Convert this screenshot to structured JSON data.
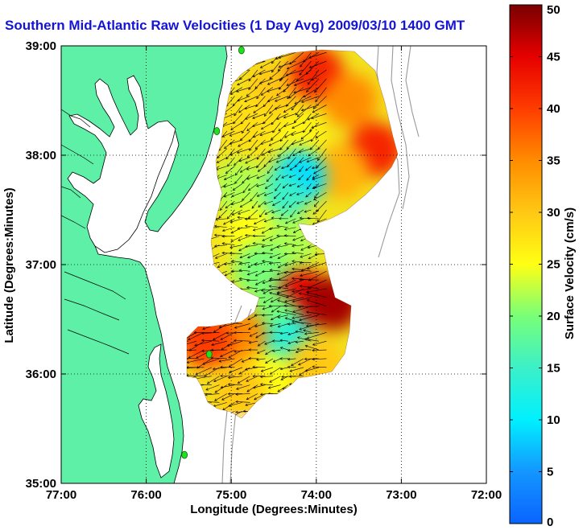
{
  "title": "Southern Mid-Atlantic Raw Velocities (1 Day Avg) 2009/03/10 1400 GMT",
  "x_axis": {
    "label": "Longitude (Degrees:Minutes)",
    "ticks": [
      {
        "value": -77,
        "label": "77:00"
      },
      {
        "value": -76,
        "label": "76:00"
      },
      {
        "value": -75,
        "label": "75:00"
      },
      {
        "value": -74,
        "label": "74:00"
      },
      {
        "value": -73,
        "label": "73:00"
      },
      {
        "value": -72,
        "label": "72:00"
      }
    ],
    "range": [
      -77,
      -72
    ]
  },
  "y_axis": {
    "label": "Latitude (Degrees:Minutes)",
    "ticks": [
      {
        "value": 39,
        "label": "39:00"
      },
      {
        "value": 38,
        "label": "38:00"
      },
      {
        "value": 37,
        "label": "37:00"
      },
      {
        "value": 36,
        "label": "36:00"
      },
      {
        "value": 35,
        "label": "35:00"
      }
    ],
    "range": [
      35,
      39
    ]
  },
  "colorbar": {
    "label": "Surface Velocity (cm/s)",
    "min": 0,
    "max": 50,
    "ticks": [
      {
        "value": 0,
        "label": "0"
      },
      {
        "value": 5,
        "label": "5"
      },
      {
        "value": 10,
        "label": "10"
      },
      {
        "value": 15,
        "label": "15"
      },
      {
        "value": 20,
        "label": "20"
      },
      {
        "value": 25,
        "label": "25"
      },
      {
        "value": 30,
        "label": "30"
      },
      {
        "value": 35,
        "label": "35"
      },
      {
        "value": 40,
        "label": "40"
      },
      {
        "value": 45,
        "label": "45"
      },
      {
        "value": 50,
        "label": "50"
      }
    ]
  },
  "colors": {
    "land": "#5ff0a8",
    "title": "#1414d8",
    "station": "#20e020",
    "grid": "#000000",
    "bathymetry": "#999999"
  },
  "grid": true,
  "stations": [
    {
      "lon": -74.88,
      "lat": 38.96
    },
    {
      "lon": -75.17,
      "lat": 38.22
    },
    {
      "lon": -75.26,
      "lat": 36.18
    },
    {
      "lon": -75.55,
      "lat": 35.26
    }
  ],
  "velocity_field": {
    "units": "cm/s",
    "regions": [
      {
        "lon": -74.5,
        "lat": 38.6,
        "speed": 30
      },
      {
        "lon": -74.0,
        "lat": 38.75,
        "speed": 42
      },
      {
        "lon": -73.6,
        "lat": 38.5,
        "speed": 35
      },
      {
        "lon": -73.3,
        "lat": 38.05,
        "speed": 42
      },
      {
        "lon": -73.7,
        "lat": 37.85,
        "speed": 32
      },
      {
        "lon": -74.8,
        "lat": 38.3,
        "speed": 28
      },
      {
        "lon": -74.2,
        "lat": 38.15,
        "speed": 26
      },
      {
        "lon": -74.2,
        "lat": 37.8,
        "speed": 9
      },
      {
        "lon": -74.45,
        "lat": 37.6,
        "speed": 15
      },
      {
        "lon": -74.9,
        "lat": 37.7,
        "speed": 22
      },
      {
        "lon": -74.75,
        "lat": 37.3,
        "speed": 25
      },
      {
        "lon": -74.3,
        "lat": 37.2,
        "speed": 22
      },
      {
        "lon": -74.65,
        "lat": 36.95,
        "speed": 20
      },
      {
        "lon": -74.15,
        "lat": 36.7,
        "speed": 45
      },
      {
        "lon": -73.8,
        "lat": 36.65,
        "speed": 48
      },
      {
        "lon": -74.5,
        "lat": 36.5,
        "speed": 20
      },
      {
        "lon": -74.3,
        "lat": 36.25,
        "speed": 12
      },
      {
        "lon": -74.6,
        "lat": 36.2,
        "speed": 14
      },
      {
        "lon": -74.9,
        "lat": 36.35,
        "speed": 35
      },
      {
        "lon": -75.3,
        "lat": 36.3,
        "speed": 40
      },
      {
        "lon": -74.0,
        "lat": 36.1,
        "speed": 30
      },
      {
        "lon": -74.6,
        "lat": 35.95,
        "speed": 25
      },
      {
        "lon": -74.9,
        "lat": 35.85,
        "speed": 30
      }
    ],
    "flow_sectors": [
      {
        "lon_min": -75.2,
        "lon_max": -73.0,
        "lat_min": 37.45,
        "lat_max": 39.0,
        "direction_deg": 235
      },
      {
        "lon_min": -75.3,
        "lon_max": -73.6,
        "lat_min": 36.75,
        "lat_max": 37.45,
        "direction_deg": 260
      },
      {
        "lon_min": -74.4,
        "lon_max": -73.4,
        "lat_min": 36.2,
        "lat_max": 36.95,
        "direction_deg": 270
      },
      {
        "lon_min": -75.6,
        "lon_max": -73.6,
        "lat_min": 35.6,
        "lat_max": 36.75,
        "direction_deg": 255
      }
    ]
  }
}
